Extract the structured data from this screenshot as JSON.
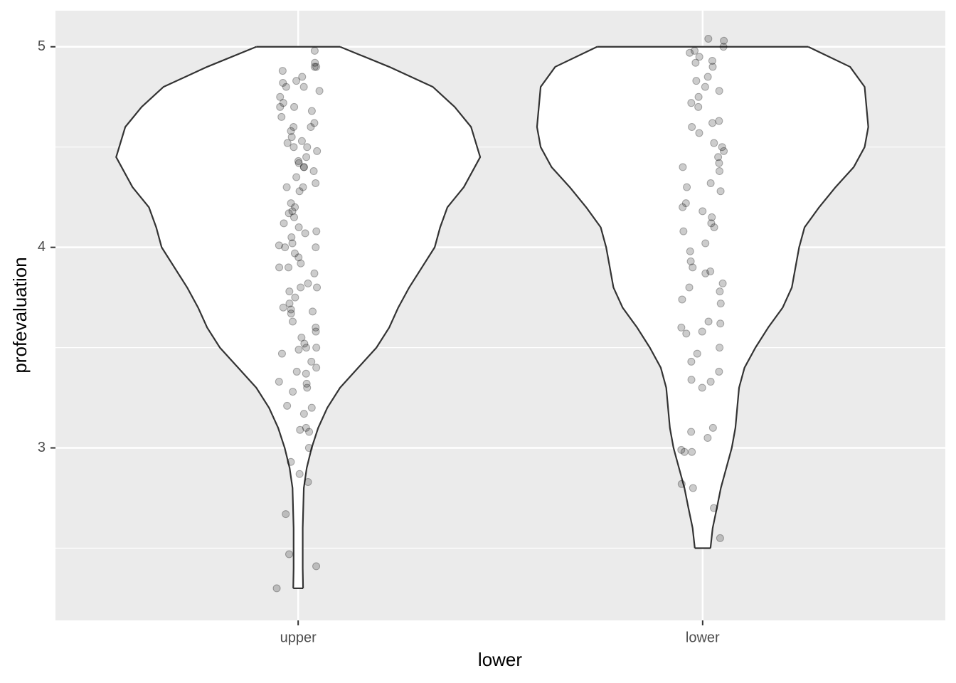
{
  "chart_data": {
    "type": "violin",
    "x_label": "lower",
    "y_label": "profevaluation",
    "categories": [
      "upper",
      "lower"
    ],
    "ylim": [
      2.14,
      5.18
    ],
    "yticks": [
      3,
      4,
      5
    ],
    "yminor": [
      2.5,
      3.5,
      4.5
    ],
    "grid": true,
    "violins": [
      {
        "y": [
          5.0,
          4.9,
          4.8,
          4.7,
          4.6,
          4.45,
          4.3,
          4.2,
          4.1,
          4.0,
          3.9,
          3.8,
          3.7,
          3.6,
          3.5,
          3.4,
          3.3,
          3.2,
          3.1,
          3.0,
          2.9,
          2.8,
          2.6,
          2.4,
          2.3
        ],
        "width": [
          0.23,
          0.5,
          0.74,
          0.86,
          0.95,
          1.0,
          0.91,
          0.82,
          0.78,
          0.75,
          0.68,
          0.61,
          0.55,
          0.5,
          0.43,
          0.33,
          0.23,
          0.16,
          0.11,
          0.074,
          0.047,
          0.031,
          0.025,
          0.025,
          0.027
        ]
      },
      {
        "y": [
          5.0,
          4.9,
          4.8,
          4.6,
          4.5,
          4.4,
          4.3,
          4.2,
          4.1,
          4.0,
          3.9,
          3.8,
          3.7,
          3.6,
          3.5,
          3.4,
          3.3,
          3.2,
          3.1,
          3.0,
          2.9,
          2.8,
          2.7,
          2.6,
          2.5
        ],
        "width": [
          0.58,
          0.81,
          0.89,
          0.91,
          0.89,
          0.83,
          0.73,
          0.64,
          0.56,
          0.53,
          0.51,
          0.49,
          0.44,
          0.36,
          0.29,
          0.23,
          0.2,
          0.19,
          0.18,
          0.16,
          0.13,
          0.1,
          0.078,
          0.055,
          0.043
        ]
      }
    ],
    "points": [
      {
        "values": [
          2.3,
          2.41,
          2.47,
          2.67,
          2.83,
          2.87,
          2.93,
          3.0,
          3.08,
          3.09,
          3.1,
          3.17,
          3.2,
          3.21,
          3.28,
          3.3,
          3.32,
          3.33,
          3.37,
          3.38,
          3.4,
          3.43,
          3.47,
          3.49,
          3.5,
          3.5,
          3.52,
          3.55,
          3.58,
          3.6,
          3.63,
          3.67,
          3.68,
          3.69,
          3.7,
          3.72,
          3.75,
          3.78,
          3.8,
          3.8,
          3.82,
          3.87,
          3.9,
          3.9,
          3.92,
          3.95,
          3.97,
          4.0,
          4.0,
          4.01,
          4.02,
          4.05,
          4.07,
          4.08,
          4.1,
          4.12,
          4.15,
          4.17,
          4.18,
          4.2,
          4.22,
          4.28,
          4.3,
          4.3,
          4.32,
          4.35,
          4.38,
          4.4,
          4.4,
          4.42,
          4.43,
          4.45,
          4.48,
          4.5,
          4.5,
          4.52,
          4.53,
          4.55,
          4.58,
          4.6,
          4.6,
          4.62,
          4.65,
          4.68,
          4.7,
          4.7,
          4.72,
          4.75,
          4.78,
          4.8,
          4.8,
          4.82,
          4.83,
          4.85,
          4.88,
          4.9,
          4.9,
          4.92,
          4.98
        ]
      },
      {
        "values": [
          2.55,
          2.7,
          2.8,
          2.82,
          2.98,
          2.98,
          2.99,
          3.05,
          3.08,
          3.1,
          3.3,
          3.33,
          3.34,
          3.38,
          3.43,
          3.47,
          3.5,
          3.57,
          3.58,
          3.6,
          3.62,
          3.63,
          3.72,
          3.74,
          3.78,
          3.8,
          3.82,
          3.87,
          3.88,
          3.9,
          3.93,
          3.98,
          4.02,
          4.08,
          4.1,
          4.12,
          4.15,
          4.18,
          4.2,
          4.22,
          4.28,
          4.3,
          4.32,
          4.38,
          4.4,
          4.42,
          4.45,
          4.48,
          4.5,
          4.52,
          4.57,
          4.6,
          4.62,
          4.63,
          4.7,
          4.72,
          4.75,
          4.78,
          4.8,
          4.83,
          4.85,
          4.9,
          4.92,
          4.93,
          4.95,
          4.97,
          4.98,
          5.0,
          5.03,
          5.04
        ]
      }
    ]
  }
}
